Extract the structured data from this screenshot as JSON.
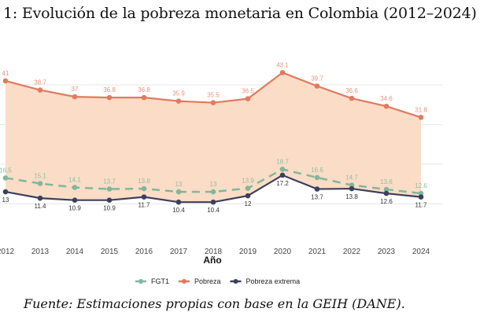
{
  "title": "1: Evolución de la pobreza monetaria en Colombia (2012–2024)",
  "caption": "Fuente: Estimaciones propias con base en la GEIH (DANE).",
  "chart_data": {
    "type": "line",
    "xlabel": "Año",
    "ylabel": "",
    "x": [
      2012,
      2013,
      2014,
      2015,
      2016,
      2017,
      2018,
      2019,
      2020,
      2021,
      2022,
      2023,
      2024
    ],
    "grid": true,
    "legend_position": "bottom",
    "shaded_area": "between Pobreza and Pobreza extrema",
    "series": [
      {
        "name": "FGT1",
        "color": "#7fb89a",
        "dashed": true,
        "values": [
          16.5,
          15.1,
          14.1,
          13.7,
          13.8,
          13,
          13,
          13.9,
          18.7,
          16.6,
          14.7,
          13.6,
          12.6
        ]
      },
      {
        "name": "Pobreza",
        "color": "#e07a5f",
        "dashed": false,
        "values": [
          41,
          38.7,
          37,
          36.8,
          36.8,
          35.9,
          35.5,
          36.5,
          43.1,
          39.7,
          36.6,
          34.6,
          31.8
        ]
      },
      {
        "name": "Pobreza extrema",
        "color": "#3d405b",
        "dashed": false,
        "values": [
          13,
          11.4,
          10.9,
          10.9,
          11.7,
          10.4,
          10.4,
          12,
          17.2,
          13.7,
          13.8,
          12.6,
          11.7
        ]
      }
    ],
    "fill_color": "#fbdcc6"
  }
}
